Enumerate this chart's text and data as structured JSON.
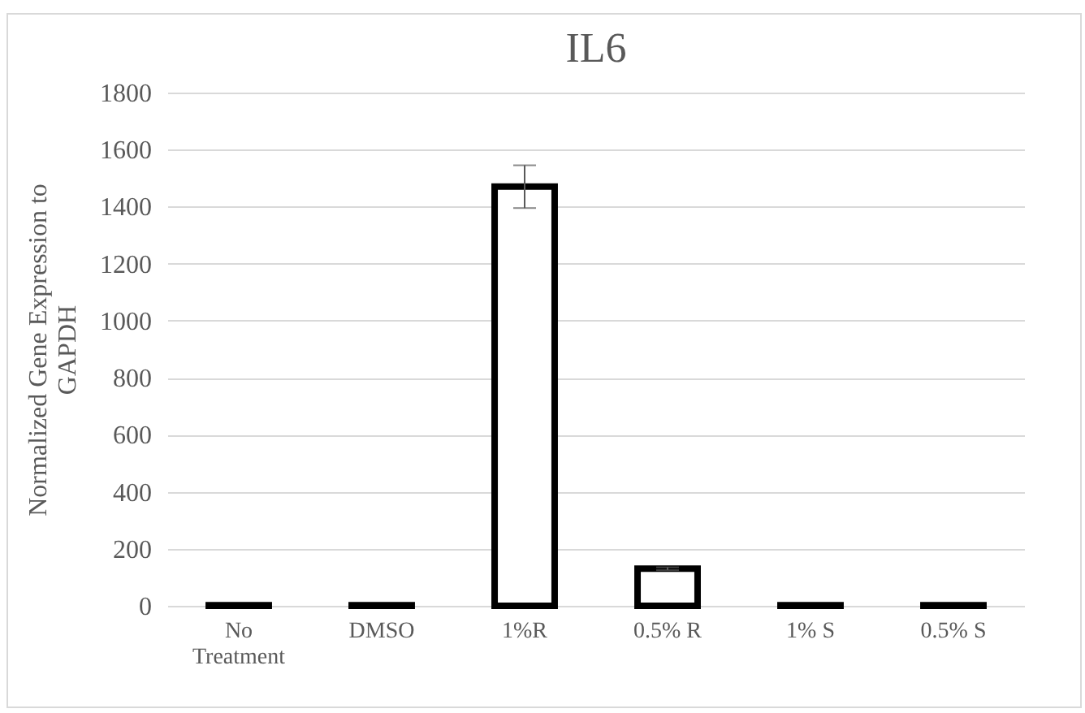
{
  "chart_data": {
    "type": "bar",
    "title": "IL6",
    "ylabel": "Normalized Gene Expression to GAPDH",
    "categories": [
      "No Treatment",
      "DMSO",
      "1%R",
      "0.5% R",
      "1% S",
      "0.5% S"
    ],
    "values": [
      2,
      2,
      1470,
      130,
      2,
      2
    ],
    "errors": [
      null,
      null,
      75,
      5,
      null,
      null
    ],
    "color": "#ffffff",
    "ylim": [
      0,
      1800
    ],
    "yticks": [
      0,
      200,
      400,
      600,
      800,
      1000,
      1200,
      1400,
      1600,
      1800
    ],
    "grid": "y"
  }
}
